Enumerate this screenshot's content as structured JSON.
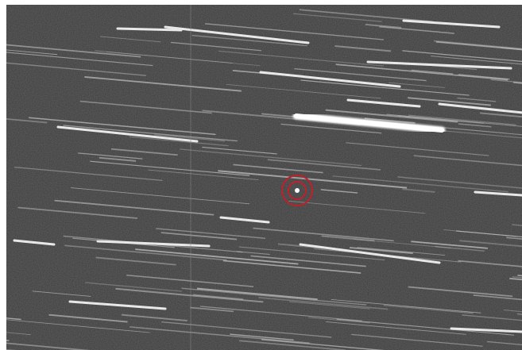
{
  "image": {
    "kind": "telescope-image-with-star-trails",
    "background_color": "#3a3a3a",
    "trail_color": "#e8e8e8",
    "target_marker_color": "#c0202a",
    "target_marker": "double-circle"
  }
}
